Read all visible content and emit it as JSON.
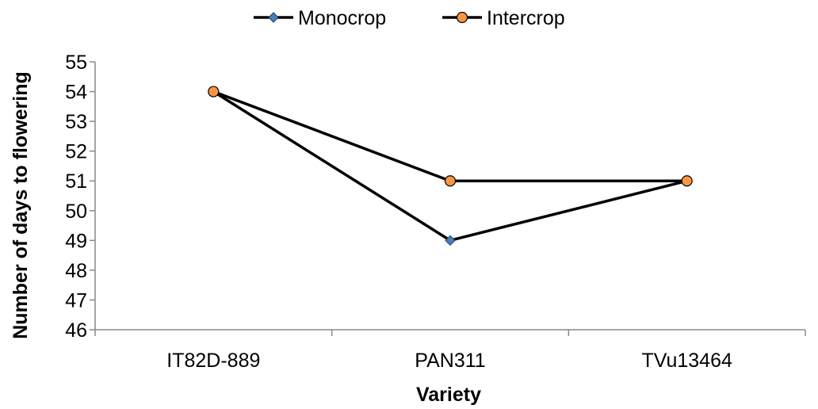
{
  "chart_data": {
    "type": "line",
    "title": "",
    "xlabel": "Variety",
    "ylabel": "Number of days to flowering",
    "categories": [
      "IT82D-889",
      "PAN311",
      "TVu13464"
    ],
    "ylim": [
      46,
      55
    ],
    "yticks": [
      46,
      47,
      48,
      49,
      50,
      51,
      52,
      53,
      54,
      55
    ],
    "grid": false,
    "legend_position": "top",
    "series": [
      {
        "name": "Monocrop",
        "values": [
          54,
          49,
          51
        ],
        "marker": "diamond",
        "marker_color": "#4a7ebb",
        "line_color": "#000000"
      },
      {
        "name": "Intercrop",
        "values": [
          54,
          51,
          51
        ],
        "marker": "circle",
        "marker_color": "#f79646",
        "line_color": "#000000"
      }
    ]
  }
}
